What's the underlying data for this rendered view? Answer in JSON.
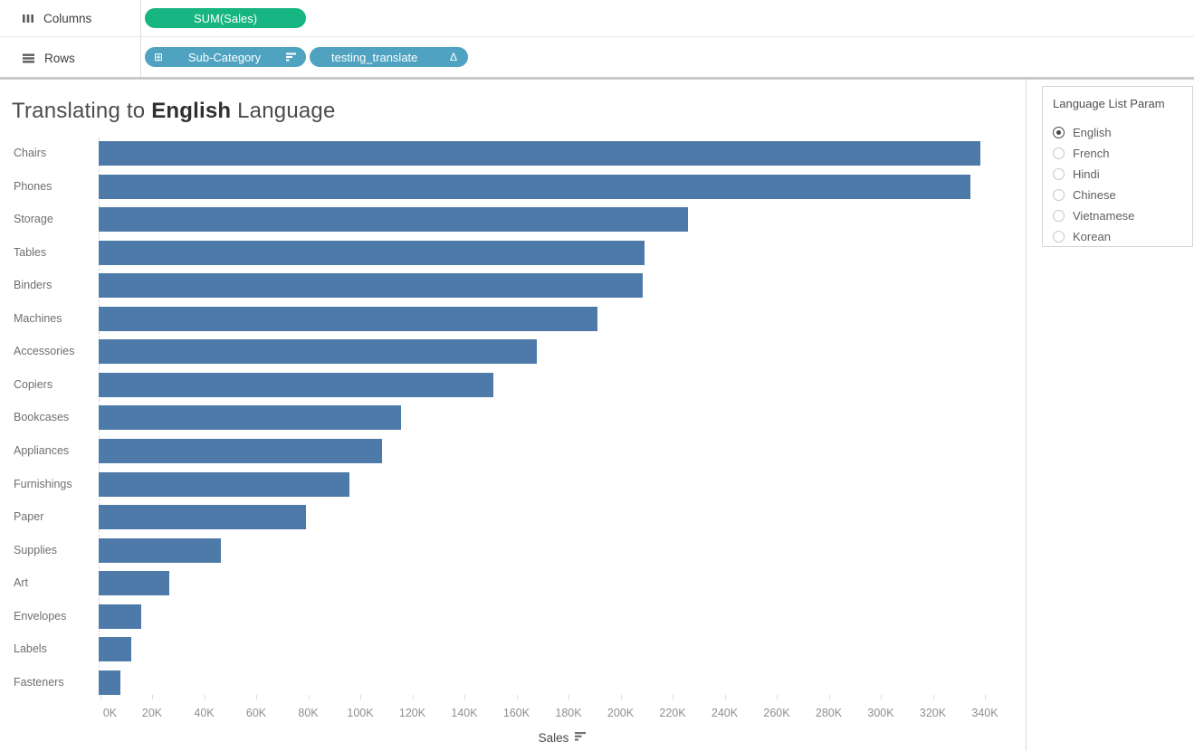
{
  "shelves": {
    "columns_label": "Columns",
    "rows_label": "Rows",
    "columns_pills": [
      {
        "label": "SUM(Sales)",
        "type": "measure"
      }
    ],
    "rows_pills": [
      {
        "label": "Sub-Category",
        "left_icon": "squared-plus-icon",
        "right_icon": "sort-descending-icon"
      },
      {
        "label": "testing_translate",
        "right_icon": "delta-icon"
      }
    ]
  },
  "colors": {
    "measure_pill": "#17B581",
    "dimension_pill": "#4FA3C1",
    "bar": "#4E7AA9"
  },
  "title": {
    "prefix": "Translating to ",
    "highlight": "English",
    "suffix": " Language"
  },
  "chart_data": {
    "type": "bar",
    "orientation": "horizontal",
    "sort": "descending",
    "title": "Translating to English Language",
    "xlabel": "Sales",
    "xlabel_sort_icon": "sort-descending-icon",
    "categories": [
      "Chairs",
      "Phones",
      "Storage",
      "Tables",
      "Binders",
      "Machines",
      "Accessories",
      "Copiers",
      "Bookcases",
      "Appliances",
      "Furnishings",
      "Paper",
      "Supplies",
      "Art",
      "Envelopes",
      "Labels",
      "Fasteners"
    ],
    "values_k": [
      338.7,
      334.9,
      226.3,
      209.6,
      208.9,
      191.5,
      168.5,
      151.8,
      116.0,
      108.7,
      96.2,
      79.8,
      46.8,
      27.3,
      16.3,
      12.4,
      8.3
    ],
    "x_ticks": [
      "0K",
      "20K",
      "40K",
      "60K",
      "80K",
      "100K",
      "120K",
      "140K",
      "160K",
      "180K",
      "200K",
      "220K",
      "240K",
      "260K",
      "280K",
      "300K",
      "320K",
      "340K"
    ],
    "xlim_k": [
      0,
      356
    ],
    "grid": "off",
    "bar_color": "#4E7AA9"
  },
  "param_panel": {
    "title": "Language List Param",
    "options": [
      {
        "label": "English",
        "selected": true
      },
      {
        "label": "French",
        "selected": false
      },
      {
        "label": "Hindi",
        "selected": false
      },
      {
        "label": "Chinese",
        "selected": false
      },
      {
        "label": "Vietnamese",
        "selected": false
      },
      {
        "label": "Korean",
        "selected": false
      }
    ]
  }
}
